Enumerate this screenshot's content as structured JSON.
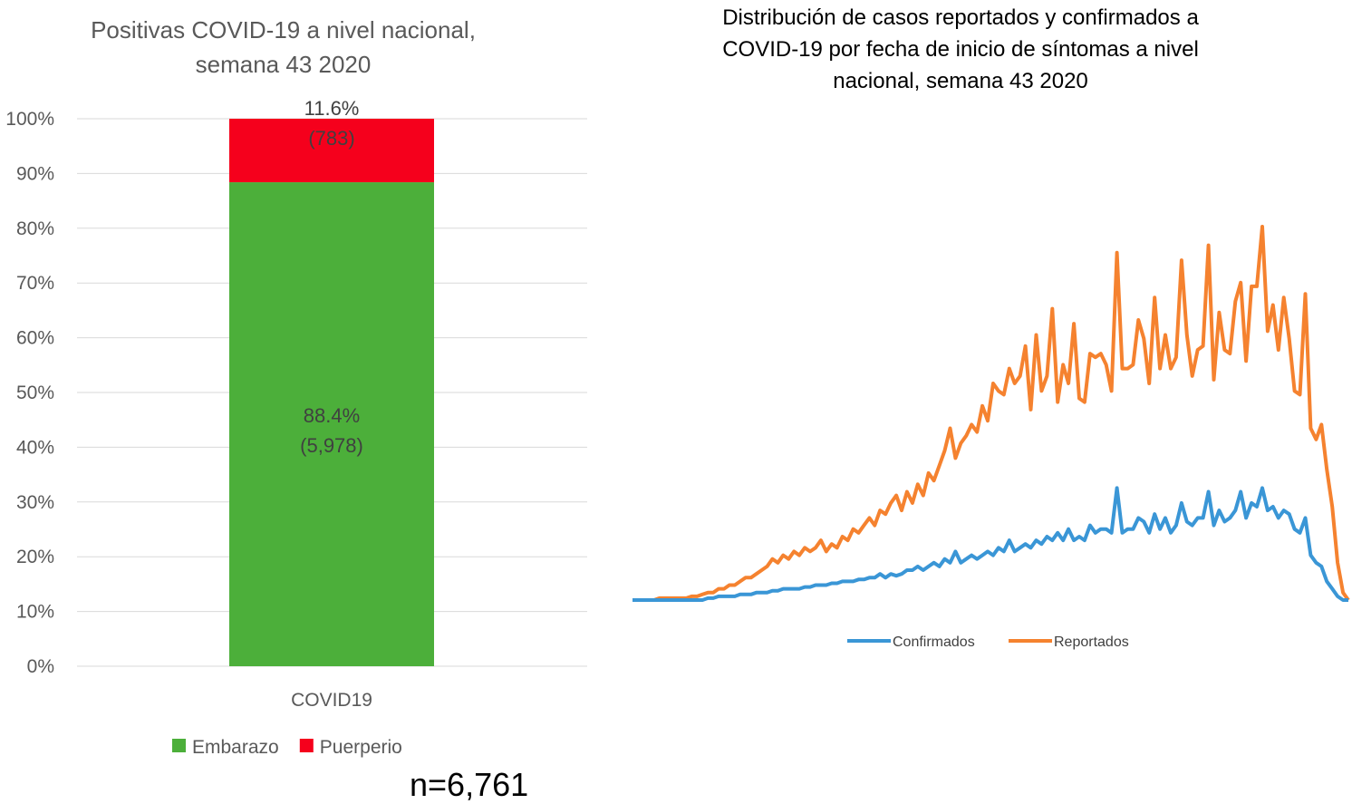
{
  "chart_data": [
    {
      "type": "bar",
      "stacked": true,
      "title_lines": [
        "Positivas COVID-19 a nivel nacional,",
        "semana 43 2020"
      ],
      "categories": [
        "COVID19"
      ],
      "series": [
        {
          "name": "Embarazo",
          "values": [
            88.4
          ],
          "count_label": "(5,978)",
          "pct_label": "88.4%",
          "color": "#4caf3a"
        },
        {
          "name": "Puerperio",
          "values": [
            11.6
          ],
          "count_label": "(783)",
          "pct_label": "11.6%",
          "color": "#f5001c"
        }
      ],
      "ylim": [
        0,
        100
      ],
      "yticks": [
        "0%",
        "10%",
        "20%",
        "30%",
        "40%",
        "50%",
        "60%",
        "70%",
        "80%",
        "90%",
        "100%"
      ],
      "grid": true,
      "legend": "bottom",
      "annotation": "n=6,761"
    },
    {
      "type": "line",
      "title_lines": [
        "Distribución de casos reportados y confirmados a",
        "COVID-19 por fecha de inicio de síntomas  a nivel",
        "nacional, semana 43 2020"
      ],
      "axes_visible": false,
      "legend": "bottom",
      "series": [
        {
          "name": "Confirmados",
          "color": "#3a96d6",
          "values": [
            0,
            0,
            0,
            0,
            0,
            0,
            0,
            0,
            0,
            0,
            0,
            0,
            0,
            0,
            0.5,
            0.5,
            1,
            1,
            1,
            1,
            1.5,
            1.5,
            1.5,
            2,
            2,
            2,
            2.5,
            2.5,
            3,
            3,
            3,
            3,
            3.5,
            3.5,
            4,
            4,
            4,
            4.5,
            4.5,
            5,
            5,
            5,
            5.5,
            5.5,
            6,
            6,
            7,
            6,
            7,
            6.5,
            7,
            8,
            8,
            9,
            8,
            9,
            10,
            9,
            11,
            10,
            13,
            10,
            11,
            12,
            11,
            12,
            13,
            12,
            14,
            13,
            16,
            13,
            14,
            15,
            14,
            16,
            15,
            17,
            16,
            18,
            16,
            19,
            16,
            17,
            16,
            20,
            18,
            19,
            19,
            18,
            30,
            18,
            19,
            19,
            22,
            21,
            18,
            23,
            19,
            22,
            18,
            20,
            26,
            21,
            20,
            22,
            22,
            29,
            20,
            24,
            21,
            22,
            24,
            29,
            22,
            26,
            25,
            30,
            24,
            25,
            22,
            24,
            23,
            19,
            18,
            22,
            12,
            10,
            9,
            5,
            3,
            1,
            0,
            0
          ]
        },
        {
          "name": "Reportados",
          "color": "#f5822f",
          "values": [
            0,
            0,
            0,
            0,
            0,
            0.5,
            0.5,
            0.5,
            0.5,
            0.5,
            0.5,
            1,
            1,
            1.5,
            2,
            2,
            3,
            3,
            4,
            4,
            5,
            6,
            6,
            7,
            8,
            9,
            11,
            10,
            12,
            11,
            13,
            12,
            14,
            13,
            14,
            16,
            13,
            15,
            14,
            17,
            16,
            19,
            18,
            20,
            22,
            20,
            24,
            23,
            26,
            28,
            24,
            29,
            26,
            31,
            28,
            34,
            32,
            36,
            40,
            46,
            38,
            42,
            44,
            47,
            45,
            52,
            48,
            58,
            56,
            55,
            62,
            58,
            60,
            68,
            51,
            71,
            56,
            60,
            78,
            53,
            63,
            58,
            74,
            54,
            53,
            66,
            65,
            66,
            63,
            56,
            93,
            62,
            62,
            63,
            75,
            70,
            58,
            81,
            62,
            71,
            62,
            65,
            91,
            71,
            60,
            67,
            68,
            95,
            59,
            77,
            67,
            66,
            80,
            85,
            64,
            84,
            84,
            100,
            72,
            79,
            67,
            81,
            70,
            56,
            55,
            82,
            46,
            43,
            47,
            35,
            25,
            10,
            2,
            0
          ]
        }
      ]
    }
  ]
}
